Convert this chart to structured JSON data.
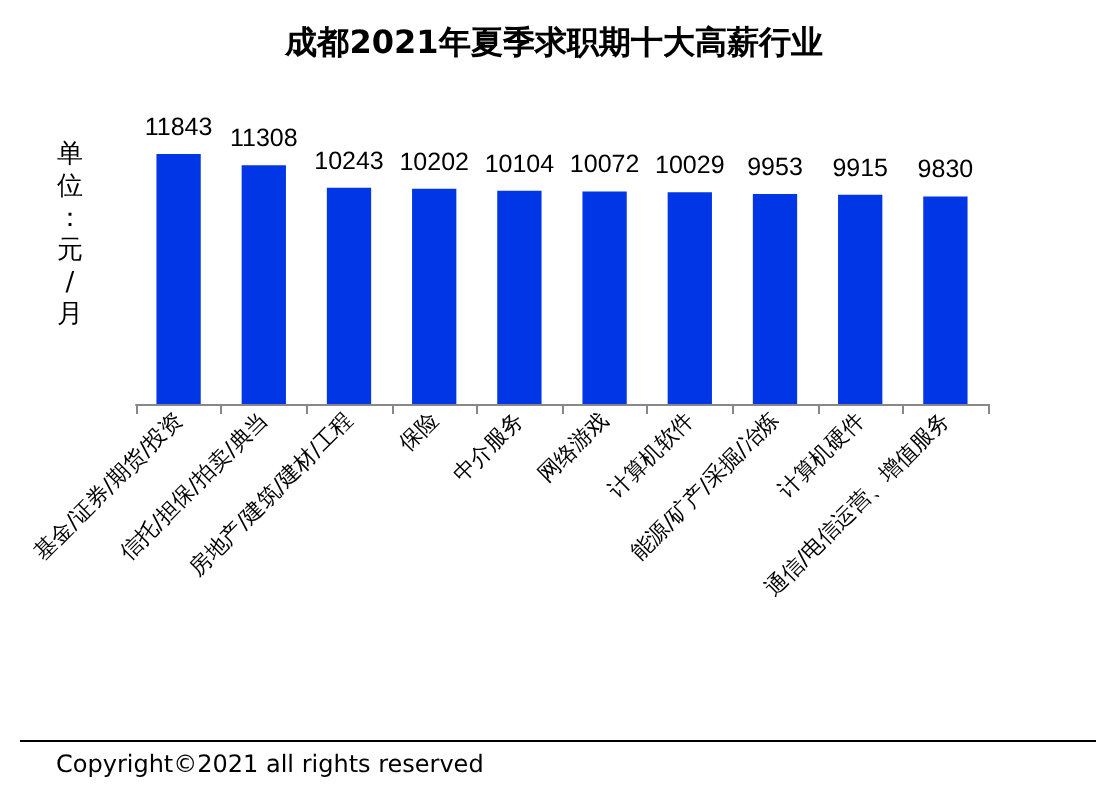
{
  "chart_data": {
    "type": "bar",
    "title": "成都2021年夏季求职期十大高薪行业",
    "ylabel": "单位：元/月",
    "categories": [
      "基金/证券/期货/投资",
      "信托/担保/拍卖/典当",
      "房地产/建筑/建材/工程",
      "保险",
      "中介服务",
      "网络游戏",
      "计算机软件",
      "能源/矿产/采掘/冶炼",
      "计算机硬件",
      "通信/电信运营、增值服务"
    ],
    "values": [
      11843,
      11308,
      10243,
      10202,
      10104,
      10072,
      10029,
      9953,
      9915,
      9830
    ],
    "color": "#0036e6",
    "data_labels": true,
    "tick_labels": "x",
    "annotations": [
      "Copyright©2021 all rights reserved"
    ]
  }
}
